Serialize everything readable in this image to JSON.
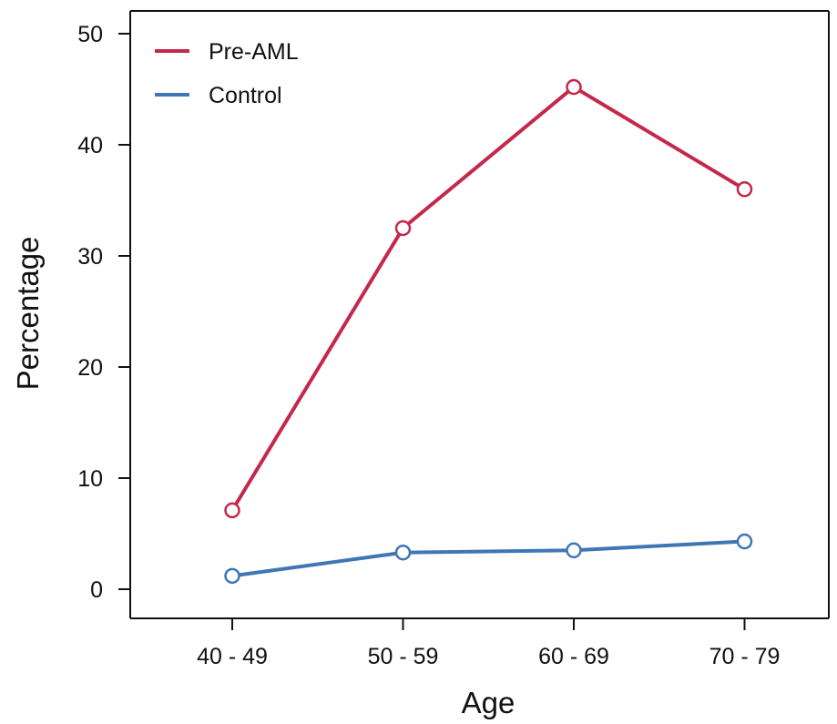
{
  "chart_data": {
    "type": "line",
    "categories": [
      "40 - 49",
      "50 - 59",
      "60 - 69",
      "70 - 79"
    ],
    "series": [
      {
        "name": "Pre-AML",
        "color": "#C4284A",
        "values": [
          7.1,
          32.5,
          45.2,
          36.0
        ]
      },
      {
        "name": "Control",
        "color": "#3F77B6",
        "values": [
          1.2,
          3.3,
          3.5,
          4.3
        ]
      }
    ],
    "title": "",
    "xlabel": "Age",
    "ylabel": "Percentage",
    "ylim": [
      0,
      50
    ],
    "yticks": [
      0,
      10,
      20,
      30,
      40,
      50
    ],
    "ytick_labels": [
      "0",
      "10",
      "20",
      "30",
      "40",
      "50"
    ],
    "grid": false,
    "legend_position": "top-left",
    "marker": "open-circle"
  }
}
